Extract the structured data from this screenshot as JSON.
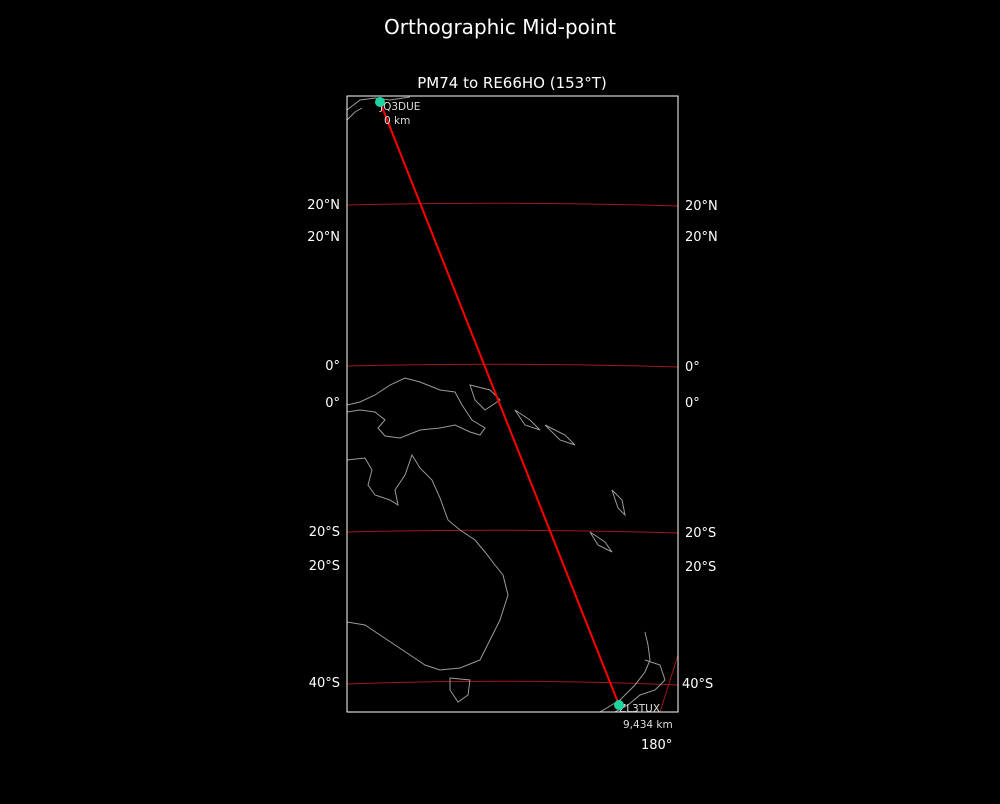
{
  "figure_title": "Orthographic Mid-point",
  "map_title": "PM74 to RE66HO (153°T)",
  "colors": {
    "background": "#000000",
    "path": "#ff0000",
    "graticule": "#a01818",
    "coast": "#9a9a9a",
    "marker": "#1fd3a0",
    "frame": "#ffffff"
  },
  "lat_labels": {
    "left": [
      "20°N",
      "20°N",
      "0°",
      "0°",
      "20°S",
      "20°S",
      "40°S"
    ],
    "right": [
      "20°N",
      "20°N",
      "0°",
      "0°",
      "20°S",
      "20°S",
      "40°S"
    ]
  },
  "lon_labels": [
    "180°"
  ],
  "start": {
    "call": "JQ3DUE",
    "distance": "0 km"
  },
  "end": {
    "call": "ZL3TUX",
    "distance": "9,434 km"
  }
}
